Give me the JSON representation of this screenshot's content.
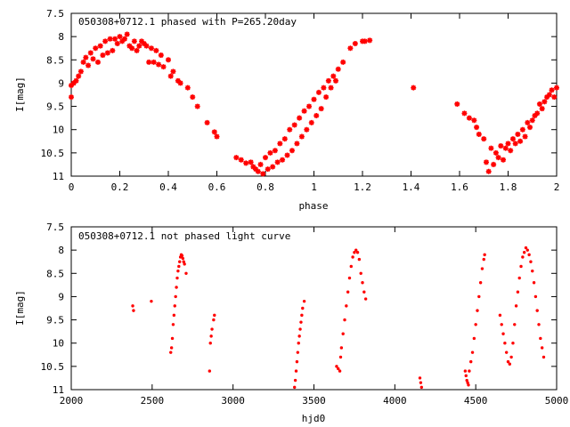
{
  "colors": {
    "points": "#ff0000",
    "axes": "#000000",
    "background": "#ffffff"
  },
  "chart_data": [
    {
      "type": "scatter",
      "title": "050308+0712.1 phased with P=265.20day",
      "xlabel": "phase",
      "ylabel": "I[mag]",
      "xlim": [
        0,
        2
      ],
      "ylim": [
        11,
        7.5
      ],
      "y_inverted": true,
      "xticks": [
        "0",
        "0.2",
        "0.4",
        "0.6",
        "0.8",
        "1",
        "1.2",
        "1.4",
        "1.6",
        "1.8",
        "2"
      ],
      "xtick_values": [
        0,
        0.2,
        0.4,
        0.6,
        0.8,
        1.0,
        1.2,
        1.4,
        1.6,
        1.8,
        2.0
      ],
      "yticks": [
        "7.5",
        "8",
        "8.5",
        "9",
        "9.5",
        "10",
        "10.5",
        "11"
      ],
      "ytick_values": [
        7.5,
        8,
        8.5,
        9,
        9.5,
        10,
        10.5,
        11
      ],
      "series": [
        {
          "marker": "star",
          "points": [
            [
              0.0,
              9.3
            ],
            [
              0.0,
              9.05
            ],
            [
              0.01,
              9.0
            ],
            [
              0.02,
              8.95
            ],
            [
              0.03,
              8.85
            ],
            [
              0.04,
              8.75
            ],
            [
              0.05,
              8.55
            ],
            [
              0.06,
              8.45
            ],
            [
              0.07,
              8.62
            ],
            [
              0.08,
              8.35
            ],
            [
              0.09,
              8.48
            ],
            [
              0.1,
              8.25
            ],
            [
              0.11,
              8.55
            ],
            [
              0.12,
              8.2
            ],
            [
              0.13,
              8.4
            ],
            [
              0.14,
              8.1
            ],
            [
              0.15,
              8.35
            ],
            [
              0.16,
              8.05
            ],
            [
              0.17,
              8.3
            ],
            [
              0.18,
              8.05
            ],
            [
              0.19,
              8.15
            ],
            [
              0.2,
              8.0
            ],
            [
              0.21,
              8.1
            ],
            [
              0.22,
              8.05
            ],
            [
              0.23,
              7.95
            ],
            [
              0.24,
              8.2
            ],
            [
              0.25,
              8.25
            ],
            [
              0.26,
              8.1
            ],
            [
              0.27,
              8.3
            ],
            [
              0.28,
              8.2
            ],
            [
              0.29,
              8.1
            ],
            [
              0.3,
              8.15
            ],
            [
              0.31,
              8.2
            ],
            [
              0.32,
              8.55
            ],
            [
              0.33,
              8.25
            ],
            [
              0.34,
              8.55
            ],
            [
              0.35,
              8.3
            ],
            [
              0.36,
              8.6
            ],
            [
              0.37,
              8.4
            ],
            [
              0.38,
              8.65
            ],
            [
              0.4,
              8.5
            ],
            [
              0.41,
              8.85
            ],
            [
              0.42,
              8.75
            ],
            [
              0.44,
              8.95
            ],
            [
              0.45,
              9.0
            ],
            [
              0.48,
              9.1
            ],
            [
              0.5,
              9.3
            ],
            [
              0.52,
              9.5
            ],
            [
              0.56,
              9.85
            ],
            [
              0.59,
              10.05
            ],
            [
              0.6,
              10.15
            ],
            [
              0.68,
              10.6
            ],
            [
              0.7,
              10.65
            ],
            [
              0.72,
              10.72
            ],
            [
              0.74,
              10.7
            ],
            [
              0.75,
              10.8
            ],
            [
              0.76,
              10.85
            ],
            [
              0.77,
              10.9
            ],
            [
              0.78,
              10.75
            ],
            [
              0.79,
              10.95
            ],
            [
              0.8,
              10.6
            ],
            [
              0.81,
              10.85
            ],
            [
              0.82,
              10.5
            ],
            [
              0.83,
              10.8
            ],
            [
              0.84,
              10.45
            ],
            [
              0.85,
              10.7
            ],
            [
              0.86,
              10.3
            ],
            [
              0.87,
              10.65
            ],
            [
              0.88,
              10.2
            ],
            [
              0.89,
              10.55
            ],
            [
              0.9,
              10.0
            ],
            [
              0.91,
              10.45
            ],
            [
              0.92,
              9.9
            ],
            [
              0.93,
              10.3
            ],
            [
              0.94,
              9.75
            ],
            [
              0.95,
              10.15
            ],
            [
              0.96,
              9.6
            ],
            [
              0.97,
              10.0
            ],
            [
              0.98,
              9.5
            ],
            [
              0.99,
              9.85
            ],
            [
              1.0,
              9.35
            ],
            [
              1.01,
              9.7
            ],
            [
              1.02,
              9.2
            ],
            [
              1.03,
              9.55
            ],
            [
              1.04,
              9.1
            ],
            [
              1.05,
              9.3
            ],
            [
              1.06,
              8.95
            ],
            [
              1.07,
              9.1
            ],
            [
              1.08,
              8.85
            ],
            [
              1.09,
              8.95
            ],
            [
              1.1,
              8.7
            ],
            [
              1.12,
              8.55
            ],
            [
              1.15,
              8.25
            ],
            [
              1.17,
              8.15
            ],
            [
              1.2,
              8.1
            ],
            [
              1.21,
              8.1
            ],
            [
              1.23,
              8.08
            ],
            [
              1.41,
              9.1
            ],
            [
              1.59,
              9.45
            ],
            [
              1.62,
              9.65
            ],
            [
              1.64,
              9.75
            ],
            [
              1.66,
              9.8
            ],
            [
              1.67,
              9.95
            ],
            [
              1.68,
              10.1
            ],
            [
              1.7,
              10.2
            ],
            [
              1.71,
              10.7
            ],
            [
              1.72,
              10.9
            ],
            [
              1.73,
              10.4
            ],
            [
              1.74,
              10.75
            ],
            [
              1.75,
              10.5
            ],
            [
              1.76,
              10.6
            ],
            [
              1.77,
              10.35
            ],
            [
              1.78,
              10.65
            ],
            [
              1.79,
              10.4
            ],
            [
              1.8,
              10.3
            ],
            [
              1.81,
              10.45
            ],
            [
              1.82,
              10.2
            ],
            [
              1.83,
              10.3
            ],
            [
              1.84,
              10.1
            ],
            [
              1.85,
              10.25
            ],
            [
              1.86,
              10.0
            ],
            [
              1.87,
              10.15
            ],
            [
              1.88,
              9.85
            ],
            [
              1.89,
              9.95
            ],
            [
              1.9,
              9.8
            ],
            [
              1.91,
              9.7
            ],
            [
              1.92,
              9.65
            ],
            [
              1.93,
              9.45
            ],
            [
              1.94,
              9.55
            ],
            [
              1.95,
              9.4
            ],
            [
              1.96,
              9.3
            ],
            [
              1.97,
              9.25
            ],
            [
              1.98,
              9.15
            ],
            [
              1.99,
              9.3
            ],
            [
              2.0,
              9.1
            ]
          ]
        }
      ]
    },
    {
      "type": "scatter",
      "title": "050308+0712.1 not phased light curve",
      "xlabel": "hjd0",
      "ylabel": "I[mag]",
      "xlim": [
        2000,
        5000
      ],
      "ylim": [
        11,
        7.5
      ],
      "y_inverted": true,
      "xticks": [
        "2000",
        "2500",
        "3000",
        "3500",
        "4000",
        "4500",
        "5000"
      ],
      "xtick_values": [
        2000,
        2500,
        3000,
        3500,
        4000,
        4500,
        5000
      ],
      "yticks": [
        "7.5",
        "8",
        "8.5",
        "9",
        "9.5",
        "10",
        "10.5",
        "11"
      ],
      "ytick_values": [
        7.5,
        8,
        8.5,
        9,
        9.5,
        10,
        10.5,
        11
      ],
      "series": [
        {
          "marker": "dot",
          "points": [
            [
              2380,
              9.2
            ],
            [
              2385,
              9.3
            ],
            [
              2495,
              9.1
            ],
            [
              2615,
              10.2
            ],
            [
              2620,
              10.1
            ],
            [
              2625,
              9.9
            ],
            [
              2630,
              9.6
            ],
            [
              2635,
              9.4
            ],
            [
              2640,
              9.2
            ],
            [
              2645,
              9.0
            ],
            [
              2650,
              8.8
            ],
            [
              2655,
              8.6
            ],
            [
              2660,
              8.45
            ],
            [
              2665,
              8.35
            ],
            [
              2670,
              8.25
            ],
            [
              2675,
              8.15
            ],
            [
              2680,
              8.1
            ],
            [
              2685,
              8.12
            ],
            [
              2690,
              8.18
            ],
            [
              2695,
              8.25
            ],
            [
              2700,
              8.3
            ],
            [
              2710,
              8.5
            ],
            [
              2855,
              10.6
            ],
            [
              2860,
              10.0
            ],
            [
              2865,
              9.85
            ],
            [
              2870,
              9.7
            ],
            [
              2880,
              9.5
            ],
            [
              2885,
              9.4
            ],
            [
              3380,
              10.95
            ],
            [
              3385,
              10.8
            ],
            [
              3390,
              10.6
            ],
            [
              3395,
              10.4
            ],
            [
              3400,
              10.2
            ],
            [
              3405,
              10.0
            ],
            [
              3410,
              9.85
            ],
            [
              3415,
              9.7
            ],
            [
              3420,
              9.55
            ],
            [
              3425,
              9.4
            ],
            [
              3430,
              9.25
            ],
            [
              3440,
              9.1
            ],
            [
              3640,
              10.5
            ],
            [
              3650,
              10.55
            ],
            [
              3660,
              10.6
            ],
            [
              3665,
              10.3
            ],
            [
              3670,
              10.1
            ],
            [
              3680,
              9.8
            ],
            [
              3690,
              9.5
            ],
            [
              3700,
              9.2
            ],
            [
              3710,
              8.9
            ],
            [
              3720,
              8.6
            ],
            [
              3730,
              8.35
            ],
            [
              3740,
              8.15
            ],
            [
              3750,
              8.05
            ],
            [
              3760,
              8.0
            ],
            [
              3770,
              8.05
            ],
            [
              3780,
              8.2
            ],
            [
              3790,
              8.5
            ],
            [
              3800,
              8.7
            ],
            [
              3810,
              8.9
            ],
            [
              3820,
              9.05
            ],
            [
              4155,
              10.75
            ],
            [
              4160,
              10.85
            ],
            [
              4165,
              10.95
            ],
            [
              4435,
              10.6
            ],
            [
              4440,
              10.7
            ],
            [
              4445,
              10.8
            ],
            [
              4450,
              10.85
            ],
            [
              4455,
              10.9
            ],
            [
              4460,
              10.6
            ],
            [
              4470,
              10.4
            ],
            [
              4480,
              10.2
            ],
            [
              4490,
              9.9
            ],
            [
              4500,
              9.6
            ],
            [
              4510,
              9.3
            ],
            [
              4520,
              9.0
            ],
            [
              4530,
              8.7
            ],
            [
              4540,
              8.4
            ],
            [
              4550,
              8.2
            ],
            [
              4555,
              8.1
            ],
            [
              4650,
              9.4
            ],
            [
              4660,
              9.6
            ],
            [
              4670,
              9.8
            ],
            [
              4680,
              10.0
            ],
            [
              4690,
              10.2
            ],
            [
              4700,
              10.4
            ],
            [
              4710,
              10.45
            ],
            [
              4720,
              10.3
            ],
            [
              4730,
              10.0
            ],
            [
              4740,
              9.6
            ],
            [
              4750,
              9.2
            ],
            [
              4760,
              8.9
            ],
            [
              4770,
              8.6
            ],
            [
              4780,
              8.35
            ],
            [
              4790,
              8.15
            ],
            [
              4800,
              8.05
            ],
            [
              4810,
              7.95
            ],
            [
              4820,
              8.0
            ],
            [
              4830,
              8.1
            ],
            [
              4840,
              8.25
            ],
            [
              4850,
              8.45
            ],
            [
              4860,
              8.7
            ],
            [
              4870,
              9.0
            ],
            [
              4880,
              9.3
            ],
            [
              4890,
              9.6
            ],
            [
              4900,
              9.9
            ],
            [
              4910,
              10.1
            ],
            [
              4920,
              10.3
            ]
          ]
        }
      ]
    }
  ]
}
